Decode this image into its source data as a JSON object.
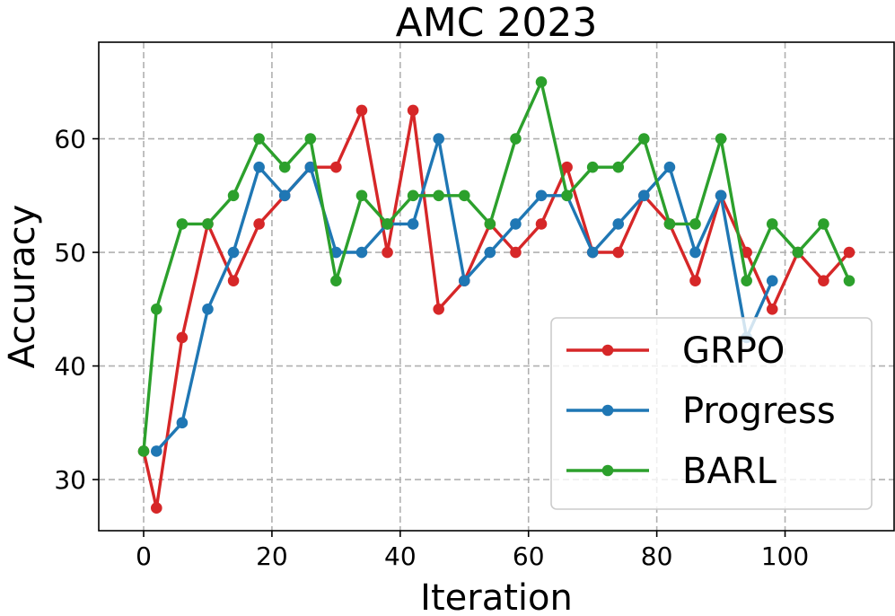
{
  "chart_data": {
    "type": "line",
    "title": "AMC 2023",
    "xlabel": "Iteration",
    "ylabel": "Accuracy",
    "xlim": [
      -7,
      117
    ],
    "ylim": [
      25.5,
      68.5
    ],
    "xticks": [
      0,
      20,
      40,
      60,
      80,
      100
    ],
    "yticks": [
      30,
      40,
      50,
      60
    ],
    "grid": true,
    "legend_position": "lower-right",
    "series": [
      {
        "name": "GRPO",
        "color": "#d62728",
        "x": [
          0,
          2,
          6,
          10,
          14,
          18,
          22,
          26,
          30,
          34,
          38,
          42,
          46,
          50,
          54,
          58,
          62,
          66,
          70,
          74,
          78,
          82,
          86,
          90,
          94,
          98,
          102,
          106,
          110
        ],
        "y": [
          32.5,
          27.5,
          42.5,
          52.5,
          47.5,
          52.5,
          55,
          57.5,
          57.5,
          62.5,
          50,
          62.5,
          45,
          47.5,
          52.5,
          50,
          52.5,
          57.5,
          50,
          50,
          55,
          52.5,
          47.5,
          55,
          50,
          45,
          50,
          47.5,
          50
        ]
      },
      {
        "name": "Progress",
        "color": "#1f77b4",
        "x": [
          2,
          6,
          10,
          14,
          18,
          22,
          26,
          30,
          34,
          38,
          42,
          46,
          50,
          54,
          58,
          62,
          66,
          70,
          74,
          78,
          82,
          86,
          90,
          94,
          98
        ],
        "y": [
          32.5,
          35,
          45,
          50,
          57.5,
          55,
          57.5,
          50,
          50,
          52.5,
          52.5,
          60,
          47.5,
          50,
          52.5,
          55,
          55,
          50,
          52.5,
          55,
          57.5,
          50,
          55,
          42.5,
          47.5
        ]
      },
      {
        "name": "BARL",
        "color": "#2ca02c",
        "x": [
          0,
          2,
          6,
          10,
          14,
          18,
          22,
          26,
          30,
          34,
          38,
          42,
          46,
          50,
          54,
          58,
          62,
          66,
          70,
          74,
          78,
          82,
          86,
          90,
          94,
          98,
          102,
          106,
          110
        ],
        "y": [
          32.5,
          45,
          52.5,
          52.5,
          55,
          60,
          57.5,
          60,
          47.5,
          55,
          52.5,
          55,
          55,
          55,
          52.5,
          60,
          65,
          55,
          57.5,
          57.5,
          60,
          52.5,
          52.5,
          60,
          47.5,
          52.5,
          50,
          52.5,
          47.5
        ]
      }
    ]
  }
}
